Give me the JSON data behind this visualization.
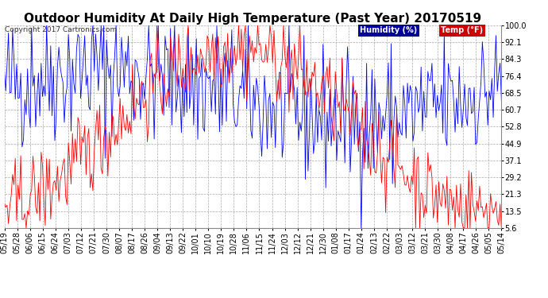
{
  "title": "Outdoor Humidity At Daily High Temperature (Past Year) 20170519",
  "copyright": "Copyright 2017 Cartronics.com",
  "yticks": [
    100.0,
    92.1,
    84.3,
    76.4,
    68.5,
    60.7,
    52.8,
    44.9,
    37.1,
    29.2,
    21.3,
    13.5,
    5.6
  ],
  "ymin": 5.6,
  "ymax": 100.0,
  "humidity_color": "#0000ff",
  "temp_color": "#ff0000",
  "bg_color": "#ffffff",
  "grid_color": "#aaaaaa",
  "title_fontsize": 11,
  "copyright_fontsize": 6.5,
  "tick_fontsize": 7,
  "legend_humidity_bg": "#000099",
  "legend_temp_bg": "#cc0000",
  "xtick_labels": [
    "05/19",
    "05/28",
    "06/06",
    "06/15",
    "06/24",
    "07/03",
    "07/12",
    "07/21",
    "07/30",
    "08/07",
    "08/17",
    "08/26",
    "09/04",
    "09/13",
    "09/22",
    "10/01",
    "10/10",
    "10/19",
    "10/28",
    "11/06",
    "11/15",
    "11/24",
    "12/03",
    "12/12",
    "12/21",
    "12/30",
    "01/08",
    "01/17",
    "01/24",
    "02/13",
    "02/22",
    "03/03",
    "03/12",
    "03/21",
    "03/30",
    "04/08",
    "04/17",
    "04/26",
    "05/05",
    "05/14"
  ],
  "n_days": 366,
  "humidity_seed": 123,
  "temp_seed": 456
}
